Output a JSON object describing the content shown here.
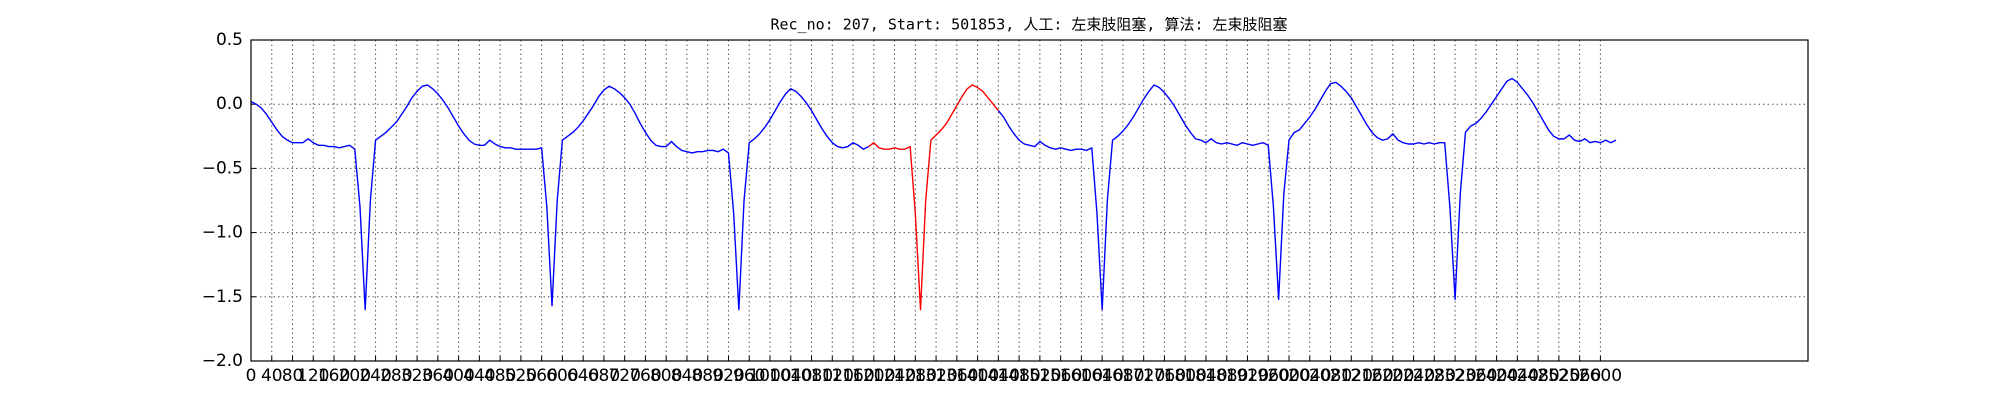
{
  "chart_data": {
    "type": "line",
    "title": "Rec_no: 207, Start: 501853, 人工: 左束肢阻塞, 算法: 左束肢阻塞",
    "xlim": [
      0,
      3000
    ],
    "ylim": [
      -2.0,
      0.5
    ],
    "xticks": [
      0,
      40,
      80,
      120,
      160,
      200,
      240,
      280,
      320,
      360,
      400,
      440,
      480,
      520,
      560,
      600,
      640,
      680,
      720,
      760,
      800,
      840,
      880,
      920,
      960,
      1000,
      1040,
      1080,
      1120,
      1160,
      1200,
      1240,
      1280,
      1320,
      1360,
      1400,
      1440,
      1480,
      1520,
      1560,
      1600,
      1640,
      1680,
      1720,
      1760,
      1800,
      1840,
      1880,
      1920,
      1960,
      2000,
      2040,
      2080,
      2120,
      2160,
      2200,
      2240,
      2280,
      2320,
      2360,
      2400,
      2440,
      2480,
      2520,
      2560,
      2600
    ],
    "yticks": [
      {
        "value": -2.0,
        "label": "−2.0"
      },
      {
        "value": -1.5,
        "label": "−1.5"
      },
      {
        "value": -1.0,
        "label": "−1.0"
      },
      {
        "value": -0.5,
        "label": "−0.5"
      },
      {
        "value": 0.0,
        "label": "0.0"
      },
      {
        "value": 0.5,
        "label": "0.5"
      }
    ],
    "grid": true,
    "series": [
      {
        "color": "#0000ff",
        "x": [
          0,
          10,
          20,
          30,
          40,
          50,
          60,
          70,
          80,
          90,
          100,
          110,
          120,
          130,
          140,
          150,
          160,
          170,
          180,
          190,
          200,
          210,
          220,
          230,
          240,
          250,
          260,
          270,
          280,
          290,
          300,
          310,
          320,
          330,
          340,
          350,
          360,
          370,
          380,
          390,
          400,
          410,
          420,
          430,
          440,
          450,
          460,
          470,
          480,
          490,
          500,
          510,
          520,
          530,
          540,
          550,
          560,
          570,
          580,
          590,
          600,
          610,
          620,
          630,
          640,
          650,
          660,
          670,
          680,
          690,
          700,
          710,
          720,
          730,
          740,
          750,
          760,
          770,
          780,
          790,
          800,
          810,
          820,
          830,
          840,
          850,
          860,
          870,
          880,
          890,
          900,
          910,
          920,
          930,
          940,
          950,
          960,
          970,
          980,
          990,
          1000,
          1010,
          1020,
          1030,
          1040,
          1050,
          1060,
          1070,
          1080,
          1090,
          1100,
          1110,
          1120,
          1130,
          1140,
          1150,
          1160,
          1170,
          1180,
          1190,
          1200,
          1210,
          1220,
          1230,
          1240,
          1250,
          1260,
          1270,
          1280,
          1290,
          1300,
          1310,
          1320,
          1330,
          1340,
          1350,
          1360,
          1370,
          1380,
          1390,
          1400,
          1410,
          1420,
          1430,
          1440,
          1450,
          1460,
          1470,
          1480,
          1490,
          1500,
          1510,
          1520,
          1530,
          1540,
          1550,
          1560,
          1570,
          1580,
          1590,
          1600,
          1610,
          1620,
          1630,
          1640,
          1650,
          1660,
          1670,
          1680,
          1690,
          1700,
          1710,
          1720,
          1730,
          1740,
          1750,
          1760,
          1770,
          1780,
          1790,
          1800,
          1810,
          1820,
          1830,
          1840,
          1850,
          1860,
          1870,
          1880,
          1890,
          1900,
          1910,
          1920,
          1930,
          1940,
          1950,
          1960,
          1970,
          1980,
          1990,
          2000,
          2010,
          2020,
          2030,
          2040,
          2050,
          2060,
          2070,
          2080,
          2090,
          2100,
          2110,
          2120,
          2130,
          2140,
          2150,
          2160,
          2170,
          2180,
          2190,
          2200,
          2210,
          2220,
          2230,
          2240,
          2250,
          2260,
          2270,
          2280,
          2290,
          2300,
          2310,
          2320,
          2330,
          2340,
          2350,
          2360,
          2370,
          2380,
          2390,
          2400,
          2410,
          2420,
          2430,
          2440,
          2450,
          2460,
          2470,
          2480,
          2490,
          2500,
          2510,
          2520,
          2530,
          2540,
          2550,
          2560,
          2570,
          2580,
          2590,
          2600,
          2610,
          2620,
          2630
        ],
        "values": [
          0.02,
          0.0,
          -0.03,
          -0.08,
          -0.14,
          -0.2,
          -0.25,
          -0.28,
          -0.3,
          -0.3,
          -0.3,
          -0.27,
          -0.3,
          -0.32,
          -0.32,
          -0.33,
          -0.33,
          -0.34,
          -0.33,
          -0.32,
          -0.35,
          -0.8,
          -1.6,
          -0.75,
          -0.28,
          -0.25,
          -0.22,
          -0.18,
          -0.14,
          -0.08,
          -0.02,
          0.05,
          0.1,
          0.14,
          0.15,
          0.12,
          0.08,
          0.03,
          -0.03,
          -0.1,
          -0.17,
          -0.23,
          -0.28,
          -0.31,
          -0.32,
          -0.32,
          -0.28,
          -0.31,
          -0.33,
          -0.34,
          -0.34,
          -0.35,
          -0.35,
          -0.35,
          -0.35,
          -0.35,
          -0.34,
          -0.8,
          -1.57,
          -0.75,
          -0.28,
          -0.25,
          -0.22,
          -0.18,
          -0.13,
          -0.07,
          -0.01,
          0.06,
          0.11,
          0.14,
          0.12,
          0.09,
          0.05,
          0.0,
          -0.07,
          -0.15,
          -0.22,
          -0.28,
          -0.32,
          -0.33,
          -0.33,
          -0.29,
          -0.33,
          -0.36,
          -0.37,
          -0.38,
          -0.37,
          -0.37,
          -0.36,
          -0.36,
          -0.37,
          -0.35,
          -0.38,
          -0.85,
          -1.6,
          -0.75,
          -0.3,
          -0.27,
          -0.23,
          -0.18,
          -0.12,
          -0.05,
          0.02,
          0.08,
          0.12,
          0.1,
          0.06,
          0.01,
          -0.05,
          -0.12,
          -0.19,
          -0.25,
          -0.3,
          -0.33,
          -0.34,
          -0.33,
          -0.3,
          -0.32,
          -0.35,
          -0.33,
          null,
          null,
          null,
          null,
          null,
          null,
          null,
          null,
          null,
          null,
          null,
          null,
          null,
          null,
          null,
          null,
          null,
          null,
          null,
          null,
          null,
          null,
          null,
          null,
          -0.05,
          -0.1,
          -0.17,
          -0.23,
          -0.28,
          -0.31,
          -0.32,
          -0.33,
          -0.29,
          -0.32,
          -0.34,
          -0.35,
          -0.34,
          -0.35,
          -0.36,
          -0.35,
          -0.35,
          -0.36,
          -0.34,
          -0.85,
          -1.6,
          -0.75,
          -0.28,
          -0.25,
          -0.21,
          -0.16,
          -0.1,
          -0.03,
          0.04,
          0.1,
          0.15,
          0.13,
          0.09,
          0.04,
          -0.02,
          -0.09,
          -0.16,
          -0.22,
          -0.27,
          -0.28,
          -0.3,
          -0.27,
          -0.3,
          -0.31,
          -0.3,
          -0.31,
          -0.32,
          -0.3,
          -0.31,
          -0.32,
          -0.31,
          -0.3,
          -0.32,
          -0.8,
          -1.52,
          -0.7,
          -0.28,
          -0.22,
          -0.2,
          -0.15,
          -0.1,
          -0.04,
          0.03,
          0.1,
          0.16,
          0.17,
          0.14,
          0.1,
          0.05,
          -0.02,
          -0.09,
          -0.16,
          -0.22,
          -0.26,
          -0.28,
          -0.27,
          -0.23,
          -0.28,
          -0.3,
          -0.31,
          -0.31,
          -0.3,
          -0.31,
          -0.3,
          -0.31,
          -0.3,
          -0.3,
          -0.8,
          -1.52,
          -0.7,
          -0.22,
          -0.17,
          -0.15,
          -0.11,
          -0.06,
          0.0,
          0.06,
          0.12,
          0.18,
          0.2,
          0.17,
          0.12,
          0.07,
          0.01,
          -0.06,
          -0.13,
          -0.2,
          -0.25,
          -0.27,
          -0.27,
          -0.24,
          -0.28,
          -0.29,
          -0.27,
          -0.3,
          -0.29,
          -0.3,
          -0.28,
          -0.3,
          -0.28
        ]
      },
      {
        "color": "#ff0000",
        "x": [
          1190,
          1200,
          1210,
          1220,
          1230,
          1240,
          1250,
          1260,
          1270,
          1280,
          1290,
          1300,
          1310,
          1320,
          1330,
          1340,
          1350,
          1360,
          1370,
          1380,
          1390,
          1400,
          1410,
          1420,
          1430,
          1440
        ],
        "values": [
          -0.33,
          -0.3,
          -0.34,
          -0.35,
          -0.35,
          -0.34,
          -0.35,
          -0.35,
          -0.33,
          -0.85,
          -1.6,
          -0.75,
          -0.28,
          -0.24,
          -0.2,
          -0.15,
          -0.08,
          -0.01,
          0.06,
          0.12,
          0.15,
          0.13,
          0.1,
          0.05,
          0.0,
          -0.05
        ]
      }
    ]
  }
}
